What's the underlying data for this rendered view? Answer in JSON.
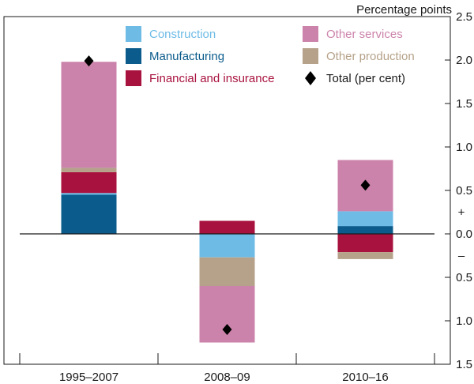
{
  "chart_data": {
    "type": "bar",
    "stacked": true,
    "unit": "Percentage points",
    "categories": [
      "1995–2007",
      "2008–09",
      "2010–16"
    ],
    "series": [
      {
        "name": "Manufacturing",
        "color": "#0b5c8c",
        "values": [
          0.45,
          0.0,
          0.09
        ]
      },
      {
        "name": "Construction",
        "color": "#6ebbe6",
        "values": [
          0.02,
          -0.27,
          0.17
        ]
      },
      {
        "name": "Financial and insurance",
        "color": "#a8123e",
        "values": [
          0.24,
          0.15,
          -0.21
        ]
      },
      {
        "name": "Other production",
        "color": "#b6a28a",
        "values": [
          0.05,
          -0.33,
          -0.08
        ]
      },
      {
        "name": "Other services",
        "color": "#cc83ab",
        "values": [
          1.22,
          -0.65,
          0.59
        ]
      }
    ],
    "total": {
      "name": "Total (per cent)",
      "values": [
        1.99,
        -1.1,
        0.56
      ]
    },
    "yaxis": {
      "ylim": [
        -1.5,
        2.5
      ],
      "ticks": [
        {
          "value": 2.5,
          "label": "2.5"
        },
        {
          "value": 2.0,
          "label": "2.0"
        },
        {
          "value": 1.5,
          "label": "1.5"
        },
        {
          "value": 1.0,
          "label": "1.0"
        },
        {
          "value": 0.5,
          "label": "0.5"
        },
        {
          "value": 0.0,
          "label": "0.0"
        },
        {
          "value": -0.5,
          "label": "0.5"
        },
        {
          "value": -1.0,
          "label": "1.0"
        },
        {
          "value": -1.5,
          "label": "1.5"
        }
      ],
      "plus_sign": "+",
      "minus_sign": "–"
    },
    "legend": [
      {
        "name": "Construction",
        "color": "#6ebbe6",
        "marker": "square"
      },
      {
        "name": "Manufacturing",
        "color": "#0b5c8c",
        "marker": "square"
      },
      {
        "name": "Financial and insurance",
        "color": "#a8123e",
        "marker": "square"
      },
      {
        "name": "Other services",
        "color": "#cc83ab",
        "marker": "square"
      },
      {
        "name": "Other production",
        "color": "#b6a28a",
        "marker": "square"
      },
      {
        "name": "Total (per cent)",
        "color": "#000000",
        "marker": "diamond"
      }
    ]
  }
}
